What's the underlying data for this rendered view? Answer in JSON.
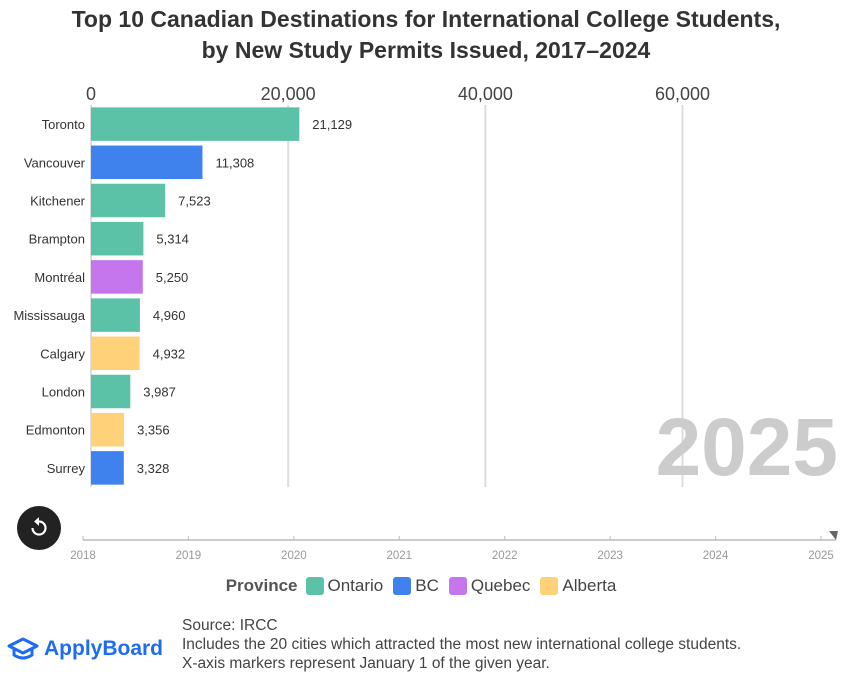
{
  "title_line1": "Top 10 Canadian Destinations for International College Students,",
  "title_line2": "by New Study Permits Issued, 2017–2024",
  "year_overlay": "2025",
  "chart_data": {
    "type": "bar",
    "orientation": "horizontal",
    "categories": [
      "Toronto",
      "Vancouver",
      "Kitchener",
      "Brampton",
      "Montréal",
      "Mississauga",
      "Calgary",
      "London",
      "Edmonton",
      "Surrey"
    ],
    "values": [
      21129,
      11308,
      7523,
      5314,
      5250,
      4960,
      4932,
      3987,
      3356,
      3328
    ],
    "value_labels": [
      "21,129",
      "11,308",
      "7,523",
      "5,314",
      "5,250",
      "4,960",
      "4,932",
      "3,987",
      "3,356",
      "3,328"
    ],
    "provinces": [
      "Ontario",
      "BC",
      "Ontario",
      "Ontario",
      "Quebec",
      "Ontario",
      "Alberta",
      "Ontario",
      "Alberta",
      "BC"
    ],
    "xlim": [
      0,
      78000
    ],
    "xticks": [
      0,
      20000,
      40000,
      60000
    ],
    "xtick_labels": [
      "0",
      "20,000",
      "40,000",
      "60,000"
    ],
    "grid": true,
    "timeline": {
      "labels": [
        "2018",
        "2019",
        "2020",
        "2021",
        "2022",
        "2023",
        "2024",
        "2025"
      ],
      "current": "2025"
    }
  },
  "legend": {
    "title": "Province",
    "items": [
      {
        "label": "Ontario",
        "color": "#5bc2a7"
      },
      {
        "label": "BC",
        "color": "#3f82ee"
      },
      {
        "label": "Quebec",
        "color": "#c576ec"
      },
      {
        "label": "Alberta",
        "color": "#ffd27a"
      }
    ]
  },
  "colors": {
    "Ontario": "#5bc2a7",
    "BC": "#3f82ee",
    "Quebec": "#c576ec",
    "Alberta": "#ffd27a",
    "year_overlay": "#cccccc",
    "grid": "#dddddd"
  },
  "replay_icon": "replay-icon",
  "brand": {
    "name": "ApplyBoard",
    "icon": "graduation-cap-icon"
  },
  "notes": [
    "Source: IRCC",
    "Includes the 20 cities which attracted the most new international college students.",
    "X-axis markers represent January 1 of the given year."
  ]
}
